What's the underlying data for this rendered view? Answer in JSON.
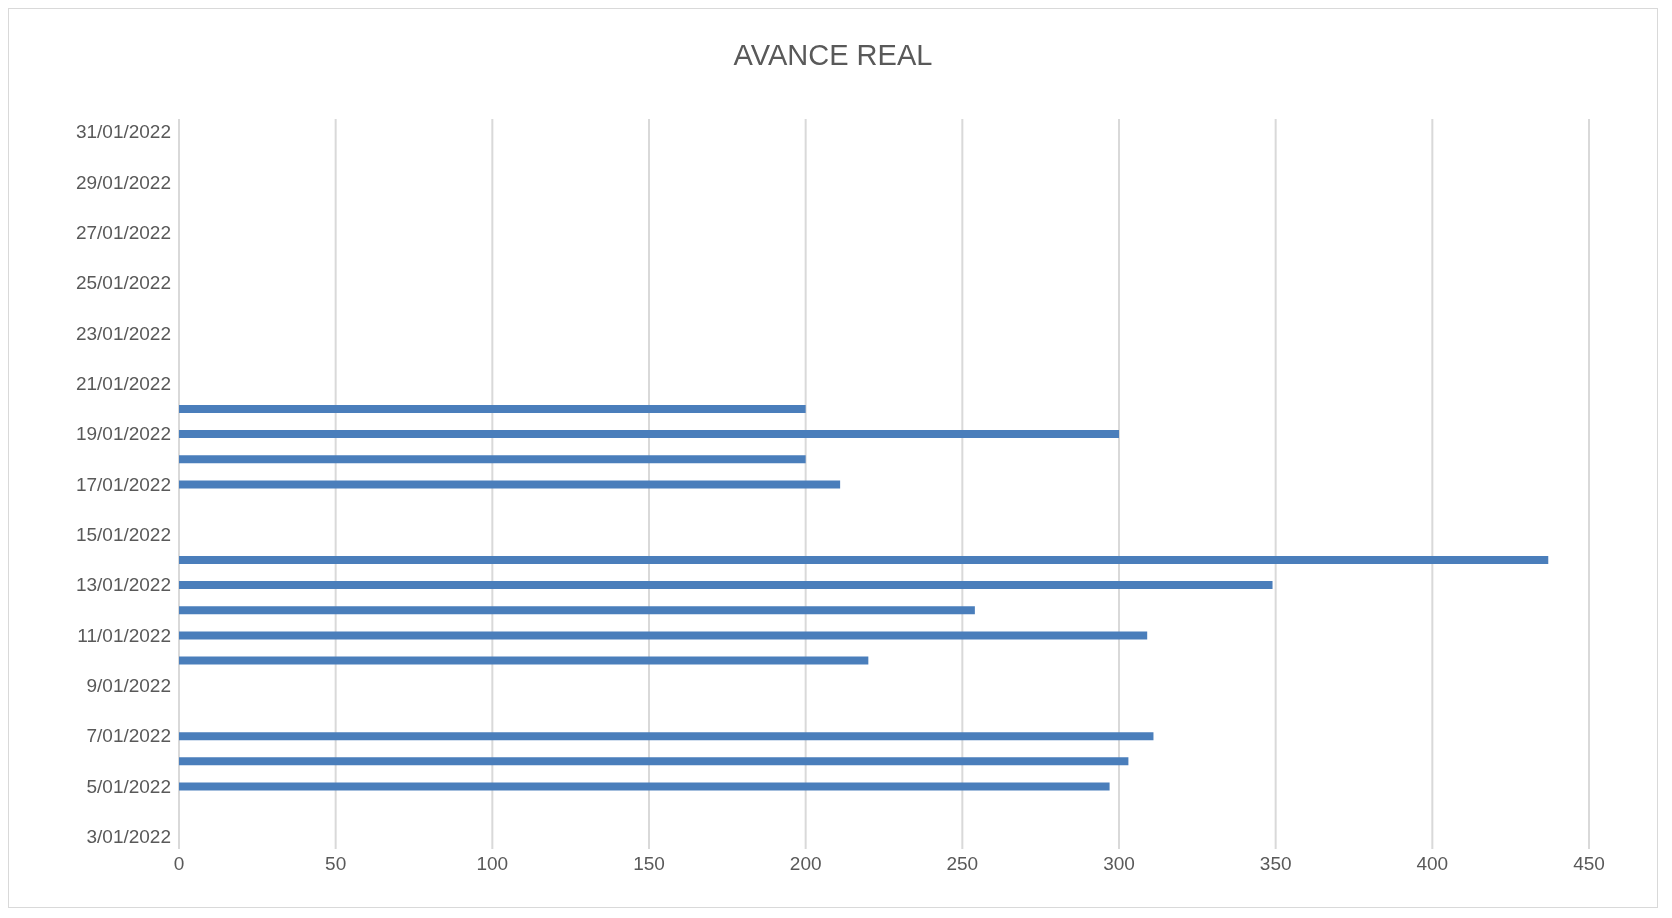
{
  "chart_data": {
    "type": "bar",
    "orientation": "horizontal",
    "title": "AVANCE REAL",
    "categories": [
      "31/01/2022",
      null,
      "29/01/2022",
      null,
      "27/01/2022",
      null,
      "25/01/2022",
      null,
      "23/01/2022",
      null,
      "21/01/2022",
      null,
      "19/01/2022",
      null,
      "17/01/2022",
      null,
      "15/01/2022",
      null,
      "13/01/2022",
      null,
      "11/01/2022",
      null,
      "9/01/2022",
      null,
      "7/01/2022",
      null,
      "5/01/2022",
      null,
      "3/01/2022"
    ],
    "values": [
      0,
      null,
      null,
      0,
      0,
      0,
      0,
      0,
      null,
      null,
      0,
      200,
      300,
      200,
      211,
      null,
      null,
      437,
      349,
      254,
      309,
      220,
      null,
      null,
      311,
      303,
      297,
      0,
      0
    ],
    "color": "#4a7ebb",
    "xlim": [
      0,
      450
    ],
    "xticks": [
      0,
      50,
      100,
      150,
      200,
      250,
      300,
      350,
      400,
      450
    ],
    "grid": "x"
  }
}
